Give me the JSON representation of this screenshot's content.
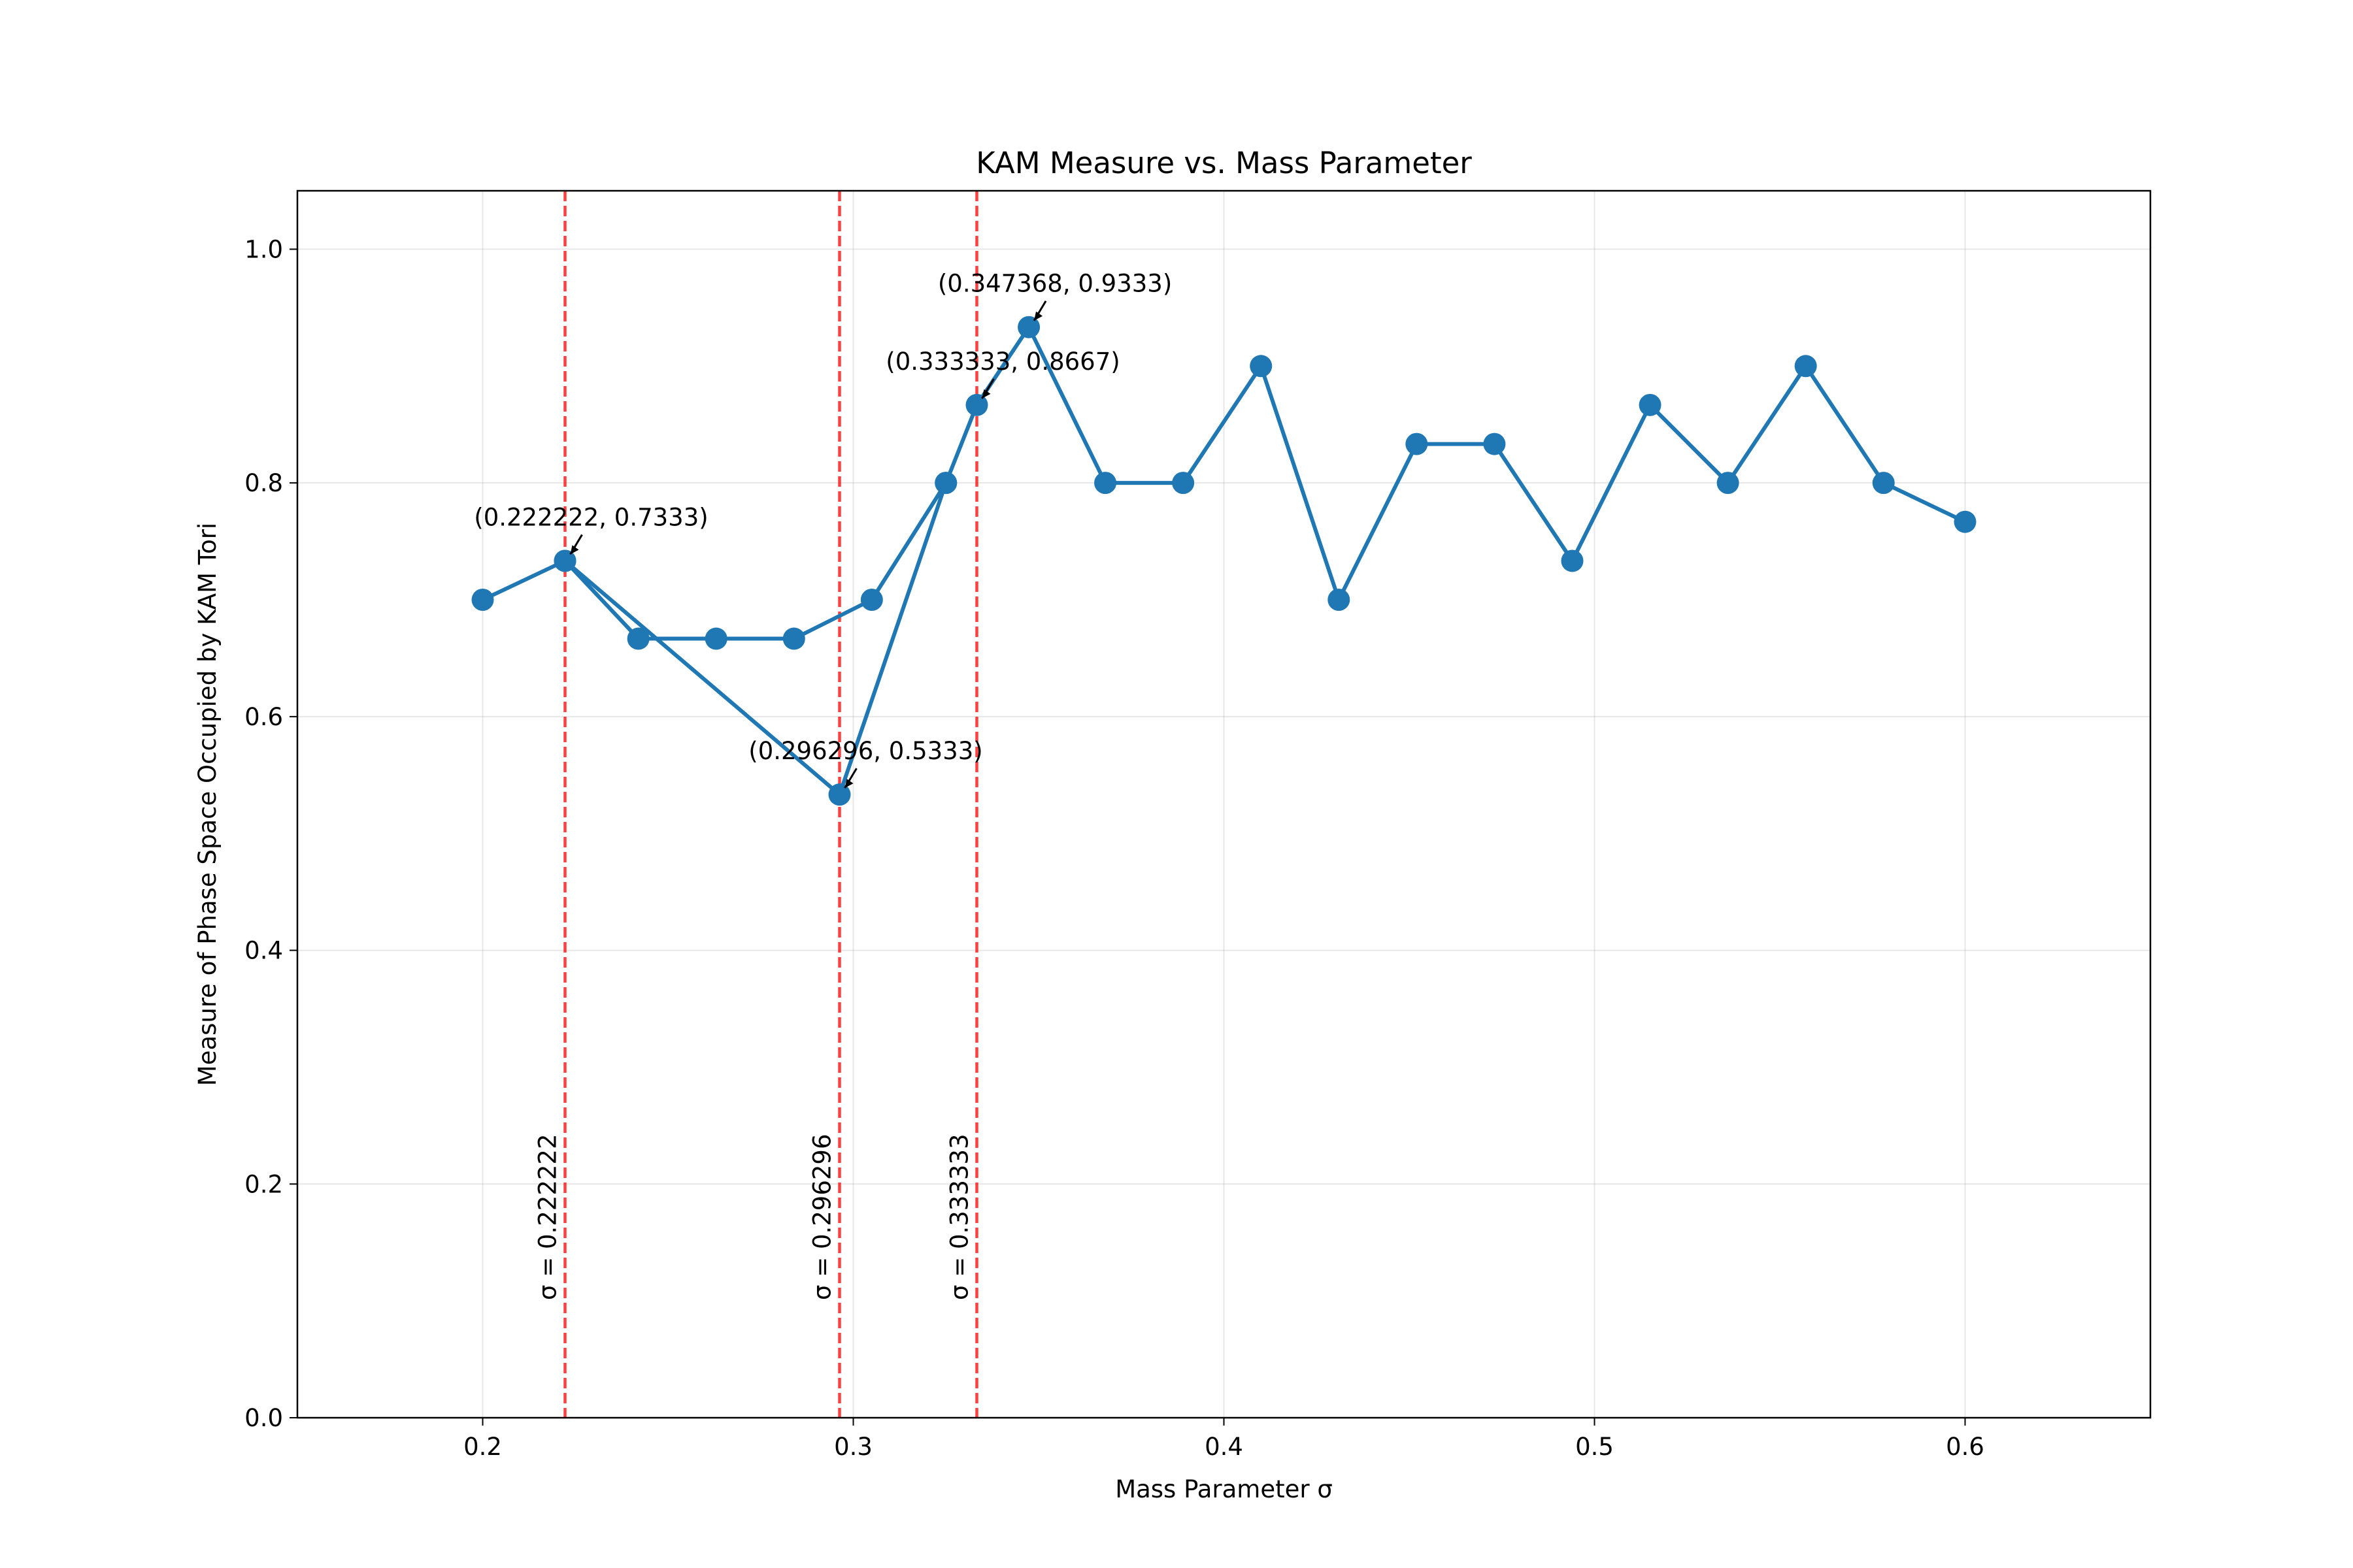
{
  "chart_data": {
    "type": "line",
    "title": "KAM Measure vs. Mass Parameter",
    "xlabel": "Mass Parameter σ",
    "ylabel": "Measure of Phase Space Occupied by KAM Tori",
    "xlim": [
      0.15,
      0.65
    ],
    "ylim": [
      0.0,
      1.05
    ],
    "xticks": [
      0.2,
      0.3,
      0.4,
      0.5,
      0.6
    ],
    "xtick_labels": [
      "0.2",
      "0.3",
      "0.4",
      "0.5",
      "0.6"
    ],
    "yticks": [
      0.0,
      0.2,
      0.4,
      0.6,
      0.8,
      1.0
    ],
    "ytick_labels": [
      "0.0",
      "0.2",
      "0.4",
      "0.6",
      "0.8",
      "1.0"
    ],
    "grid": true,
    "series_color": "#1f77b4",
    "vline_color": "#ff0000",
    "series": [
      {
        "x": [
          0.2,
          0.222222,
          0.296296,
          0.325,
          0.333333,
          0.347368,
          0.368,
          0.389,
          0.41,
          0.431,
          0.452,
          0.473,
          0.494,
          0.515,
          0.536,
          0.557,
          0.578,
          0.6
        ],
        "y": [
          0.7,
          0.7333,
          0.5333,
          0.8,
          0.8667,
          0.9333,
          0.8,
          0.8,
          0.9,
          0.7,
          0.8333,
          0.8333,
          0.7333,
          0.8667,
          0.8,
          0.9,
          0.8,
          0.7667
        ]
      },
      {
        "x": [
          0.222222,
          0.242,
          0.263,
          0.284,
          0.305,
          0.325
        ],
        "y": [
          0.7333,
          0.6667,
          0.6667,
          0.6667,
          0.7,
          0.8
        ]
      }
    ],
    "vlines": [
      {
        "x": 0.222222,
        "label": "σ = 0.222222"
      },
      {
        "x": 0.296296,
        "label": "σ = 0.296296"
      },
      {
        "x": 0.333333,
        "label": "σ = 0.333333"
      }
    ],
    "annotations": [
      {
        "x": 0.222222,
        "y": 0.7333,
        "text": "(0.222222, 0.7333)"
      },
      {
        "x": 0.296296,
        "y": 0.5333,
        "text": "(0.296296, 0.5333)"
      },
      {
        "x": 0.333333,
        "y": 0.8667,
        "text": "(0.333333, 0.8667)"
      },
      {
        "x": 0.347368,
        "y": 0.9333,
        "text": "(0.347368, 0.9333)"
      }
    ]
  }
}
